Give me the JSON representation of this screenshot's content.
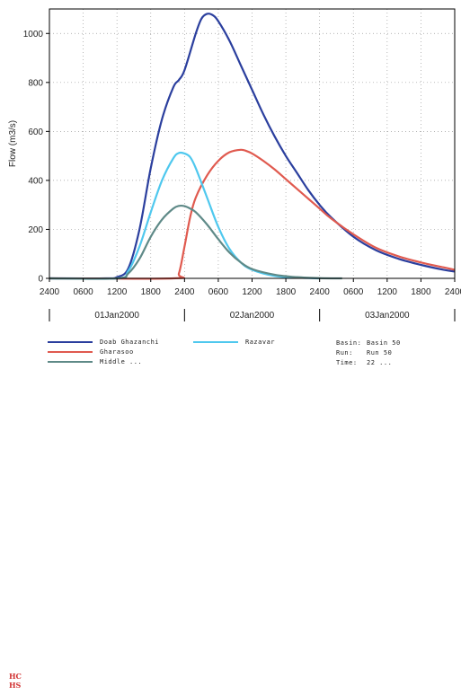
{
  "chart_data": {
    "type": "line",
    "ylabel": "Flow (m3/s)",
    "ylim": [
      0,
      1100
    ],
    "y_ticks": [
      0,
      200,
      400,
      600,
      800,
      1000
    ],
    "x_range_hours": [
      0,
      72
    ],
    "x_tick_labels": [
      "2400",
      "0600",
      "1200",
      "1800",
      "2400",
      "0600",
      "1200",
      "1800",
      "2400",
      "0600",
      "1200",
      "1800",
      "2400"
    ],
    "date_labels": [
      "01Jan2000",
      "02Jan2000",
      "03Jan2000"
    ],
    "grid": true,
    "series": [
      {
        "name": "Doab Ghazanchi",
        "color": "#2b3f9e",
        "x": [
          0,
          10,
          12,
          14,
          16,
          18,
          20,
          22,
          23,
          24,
          26,
          27,
          28,
          29,
          30,
          32,
          34,
          36,
          38,
          40,
          42,
          44,
          46,
          48,
          50,
          54,
          58,
          62,
          66,
          70,
          72
        ],
        "y": [
          0,
          0,
          5,
          40,
          200,
          450,
          650,
          780,
          810,
          850,
          1000,
          1060,
          1080,
          1075,
          1050,
          970,
          870,
          770,
          670,
          580,
          500,
          430,
          360,
          300,
          250,
          170,
          115,
          80,
          55,
          35,
          28
        ]
      },
      {
        "name": "Gharasoo",
        "color": "#e05a4f",
        "x": [
          0,
          22,
          23,
          24,
          25,
          26,
          28,
          30,
          32,
          34,
          35,
          36,
          38,
          40,
          42,
          44,
          46,
          48,
          50,
          54,
          58,
          62,
          66,
          70,
          72
        ],
        "y": [
          0,
          0,
          20,
          130,
          250,
          330,
          420,
          480,
          515,
          525,
          520,
          510,
          480,
          445,
          405,
          365,
          325,
          285,
          245,
          180,
          125,
          90,
          65,
          45,
          35
        ]
      },
      {
        "name": "Razavar",
        "color": "#4fc8ee",
        "x": [
          0,
          12,
          14,
          16,
          18,
          20,
          22,
          23,
          24,
          25,
          26,
          28,
          30,
          32,
          34,
          36,
          40,
          44,
          48
        ],
        "y": [
          0,
          0,
          30,
          130,
          270,
          400,
          490,
          512,
          510,
          495,
          450,
          330,
          210,
          120,
          65,
          35,
          10,
          3,
          0
        ]
      },
      {
        "name": "Middle ...",
        "color": "#5f8a88",
        "x": [
          0,
          12,
          14,
          16,
          18,
          20,
          22,
          23,
          24,
          25,
          26,
          28,
          30,
          32,
          34,
          36,
          40,
          44,
          48,
          52
        ],
        "y": [
          0,
          0,
          20,
          80,
          170,
          240,
          285,
          296,
          295,
          285,
          270,
          220,
          160,
          105,
          65,
          38,
          15,
          5,
          1,
          0
        ]
      }
    ]
  },
  "legend": {
    "items": [
      {
        "label": "Doab Ghazanchi",
        "color": "#2b3f9e"
      },
      {
        "label": "Gharasoo",
        "color": "#e05a4f"
      },
      {
        "label": "Middle ...",
        "color": "#5f8a88"
      },
      {
        "label": "Razavar",
        "color": "#4fc8ee"
      }
    ]
  },
  "info": {
    "basin_key": "Basin:",
    "basin_value": "Basin 50",
    "run_key": "Run:",
    "run_value": "Run 50",
    "time_key": "Time:",
    "time_value": "22 ..."
  },
  "logo": {
    "line1": "HC",
    "line2": "HS"
  }
}
